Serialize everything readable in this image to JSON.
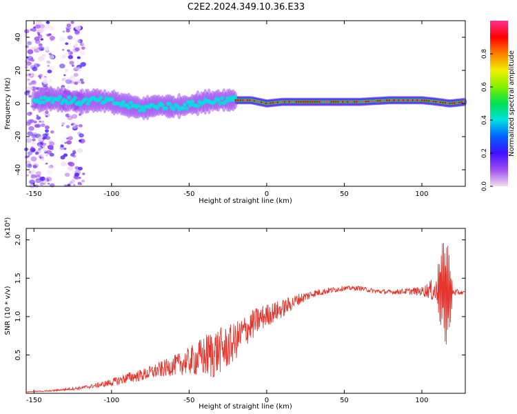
{
  "title": "C2E2.2024.349.10.36.E33",
  "chart_data": [
    {
      "type": "heatmap",
      "xlabel": "Height of straight line (km)",
      "ylabel": "Frequency (Hz)",
      "xlim": [
        -155,
        128
      ],
      "ylim": [
        -50,
        50
      ],
      "xticks": [
        -150,
        -100,
        -50,
        0,
        50,
        100
      ],
      "yticks": [
        -40,
        -20,
        0,
        20,
        40
      ],
      "colorbar": {
        "label": "Normalized spectral amplitude",
        "range": [
          0,
          1
        ],
        "ticks": [
          "0.0",
          "0.2",
          "0.4",
          "0.6",
          "0.8"
        ],
        "ticks_values": [
          0.0,
          0.2,
          0.4,
          0.6,
          0.8
        ],
        "colors": [
          "#f0dcf0",
          "#a050f0",
          "#4010ff",
          "#0060ff",
          "#00e0e0",
          "#00e050",
          "#80f000",
          "#f0f000",
          "#ff8000",
          "#ff0000",
          "#ff3090"
        ]
      },
      "peak_frequency_track": {
        "x": [
          -148,
          -140,
          -130,
          -120,
          -110,
          -100,
          -90,
          -80,
          -70,
          -60,
          -50,
          -40,
          -30,
          -20,
          -10,
          0,
          10,
          20,
          40,
          60,
          80,
          100,
          110,
          118,
          128
        ],
        "y": [
          2,
          3,
          2,
          1,
          2,
          1,
          -1,
          -3,
          -1,
          -2,
          -1,
          1,
          2,
          2,
          2,
          0,
          1,
          1,
          1,
          1,
          2,
          2,
          1,
          0,
          1
        ]
      }
    },
    {
      "type": "line",
      "xlabel": "Height of straight line (km)",
      "ylabel": "SNR (10 * v/v)",
      "multiplier": "(x10⁴)",
      "xlim": [
        -155,
        128
      ],
      "ylim": [
        0,
        2.15
      ],
      "xticks": [
        -150,
        -100,
        -50,
        0,
        50,
        100
      ],
      "yticks": [
        "0.5",
        "1.0",
        "1.5",
        "2.0"
      ],
      "yticks_values": [
        0.5,
        1.0,
        1.5,
        2.0
      ],
      "color": "#e8342c",
      "series": [
        {
          "x": [
            -155,
            -140,
            -130,
            -120,
            -110,
            -100,
            -90,
            -80,
            -70,
            -60,
            -50,
            -40,
            -35,
            -30,
            -25,
            -20,
            -15,
            -10,
            -5,
            0,
            10,
            20,
            30,
            40,
            50,
            60,
            70,
            80,
            90,
            100,
            105,
            110,
            113,
            116,
            118,
            120,
            128
          ],
          "y": [
            0.02,
            0.03,
            0.05,
            0.07,
            0.1,
            0.14,
            0.2,
            0.24,
            0.3,
            0.36,
            0.42,
            0.48,
            0.52,
            0.56,
            0.6,
            0.68,
            0.8,
            0.88,
            0.96,
            1.02,
            1.1,
            1.22,
            1.3,
            1.34,
            1.37,
            1.37,
            1.33,
            1.32,
            1.33,
            1.33,
            1.35,
            1.32,
            1.4,
            1.3,
            1.3,
            1.32,
            1.31
          ],
          "noise": [
            0.004,
            0.008,
            0.015,
            0.02,
            0.03,
            0.05,
            0.07,
            0.08,
            0.1,
            0.13,
            0.18,
            0.28,
            0.35,
            0.3,
            0.28,
            0.25,
            0.22,
            0.2,
            0.18,
            0.15,
            0.12,
            0.08,
            0.05,
            0.04,
            0.03,
            0.03,
            0.03,
            0.03,
            0.04,
            0.06,
            0.12,
            0.2,
            0.35,
            0.45,
            0.3,
            0.05,
            0.02
          ]
        }
      ]
    }
  ]
}
